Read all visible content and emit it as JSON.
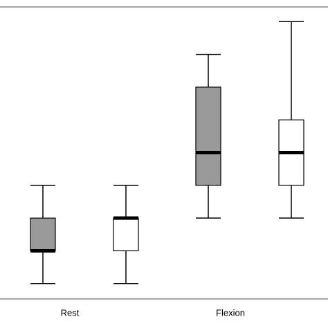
{
  "chart_data": {
    "type": "boxplot",
    "categories": [
      "Rest",
      "Flexion"
    ],
    "series": [
      {
        "color": "#999999",
        "min": [
          0,
          2
        ],
        "q1": [
          1,
          3
        ],
        "median": [
          1,
          4
        ],
        "q3": [
          2,
          6
        ],
        "max": [
          3,
          7
        ]
      },
      {
        "color": "#ffffff",
        "min": [
          0,
          2
        ],
        "q1": [
          1,
          3
        ],
        "median": [
          2,
          4
        ],
        "q3": [
          2,
          5
        ],
        "max": [
          3,
          8
        ]
      }
    ],
    "ylim": [
      -0.47,
      8.45
    ]
  }
}
